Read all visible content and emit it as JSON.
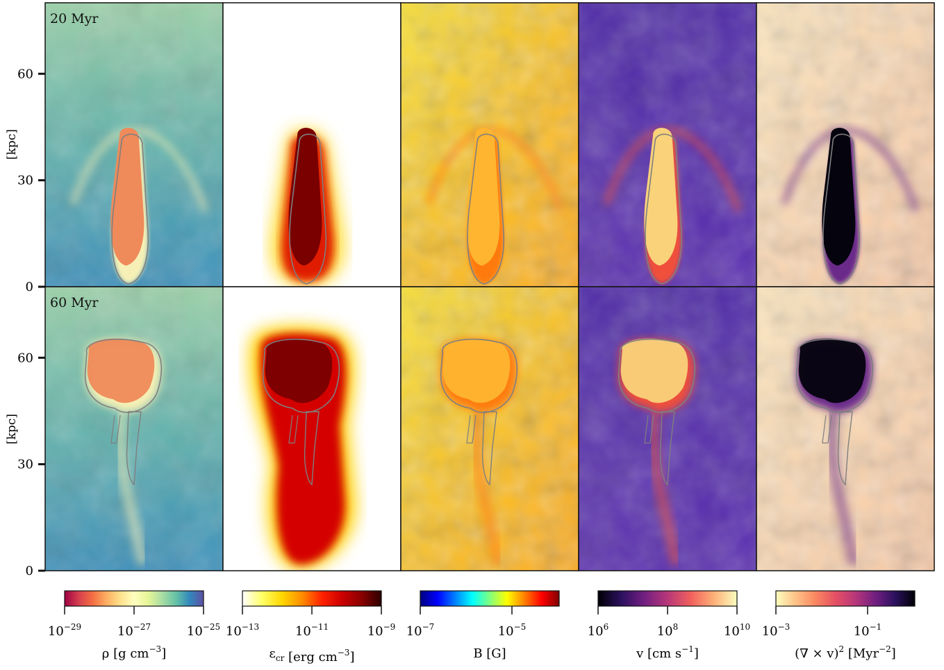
{
  "rows": [
    {
      "time_label": "20 Myr"
    },
    {
      "time_label": "60 Myr"
    }
  ],
  "y_axis": {
    "label": "[kpc]",
    "ticks": [
      "0",
      "30",
      "60"
    ]
  },
  "panels": [
    "density",
    "cosmic-ray-energy",
    "magnetic-field",
    "velocity",
    "vorticity"
  ],
  "colorbars": [
    {
      "name": "density",
      "label": "ρ [g cm",
      "label_sup": "−3",
      "label_tail": "]",
      "ticks": [
        {
          "base": "10",
          "exp": "−29"
        },
        {
          "base": "10",
          "exp": "−27"
        },
        {
          "base": "10",
          "exp": "−25"
        }
      ],
      "colors": [
        "#9e0142",
        "#d53e4f",
        "#f46d43",
        "#fdae61",
        "#fee08b",
        "#ffffbf",
        "#e6f598",
        "#abdda4",
        "#66c2a5",
        "#3288bd",
        "#5e4fa2"
      ]
    },
    {
      "name": "cosmic-ray-energy",
      "label": "ε",
      "label_sub": "cr",
      "label_mid": " [erg cm",
      "label_sup": "−3",
      "label_tail": "]",
      "ticks": [
        {
          "base": "10",
          "exp": "−13"
        },
        {
          "base": "10",
          "exp": "−11"
        },
        {
          "base": "10",
          "exp": "−9"
        }
      ],
      "colors": [
        "#ffffff",
        "#ffff66",
        "#ffd700",
        "#ff8c00",
        "#ff2200",
        "#cc0000",
        "#8b0000",
        "#2b0000"
      ]
    },
    {
      "name": "magnetic-field",
      "label": "B [G]",
      "ticks": [
        {
          "base": "10",
          "exp": "−7"
        },
        {
          "base": "10",
          "exp": "−5"
        }
      ],
      "colors": [
        "#00007f",
        "#0000ff",
        "#007fff",
        "#00ffff",
        "#7fff7f",
        "#ffff00",
        "#ff7f00",
        "#ff0000",
        "#7f0000"
      ]
    },
    {
      "name": "velocity",
      "label": "v [cm s",
      "label_sup": "−1",
      "label_tail": "]",
      "ticks": [
        {
          "base": "10",
          "exp": "6"
        },
        {
          "base": "10",
          "exp": "8"
        },
        {
          "base": "10",
          "exp": "10"
        }
      ],
      "colors": [
        "#000004",
        "#2c115f",
        "#721f81",
        "#b73779",
        "#f1605d",
        "#feb078",
        "#fcfdbf"
      ]
    },
    {
      "name": "vorticity",
      "label": "(∇ × v)",
      "label_sup": "2",
      "label_mid": " [Myr",
      "label_sup2": "−2",
      "label_tail": "]",
      "ticks": [
        {
          "base": "10",
          "exp": "−3"
        },
        {
          "base": "10",
          "exp": "−1"
        }
      ],
      "colors": [
        "#fcfdbf",
        "#fec287",
        "#fb8761",
        "#e55064",
        "#b73779",
        "#721f81",
        "#2c115f",
        "#000004"
      ]
    }
  ]
}
